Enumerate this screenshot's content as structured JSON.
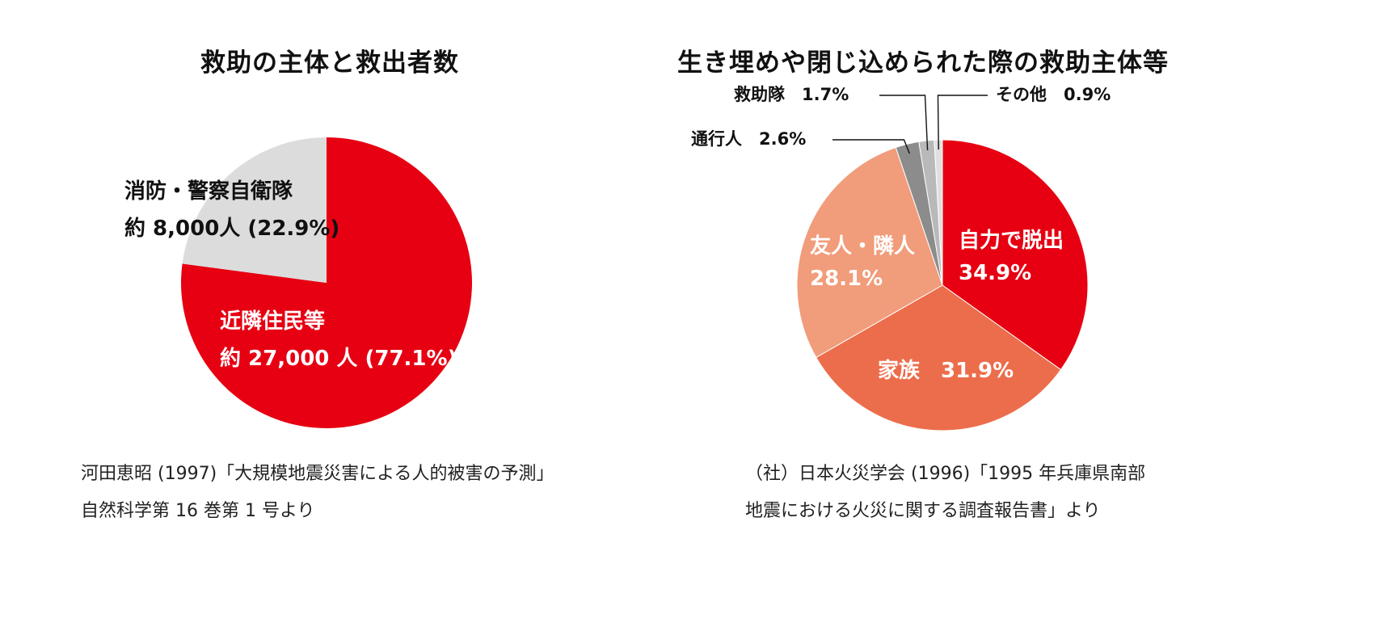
{
  "charts": [
    {
      "title": "救助の主体と救出者数",
      "source_lines": [
        "河田恵昭 (1997)「大規模地震災害による人的被害の予測」",
        "自然科学第 16 巻第 1 号より"
      ]
    },
    {
      "title": "生き埋めや閉じ込められた際の救助主体等",
      "source_lines": [
        "（社）日本火災学会 (1996)「1995 年兵庫県南部",
        "地震における火災に関する調査報告書」より"
      ]
    }
  ],
  "chart_data": [
    {
      "type": "pie",
      "title": "救助の主体と救出者数",
      "slices": [
        {
          "name": "近隣住民等",
          "count": 27000,
          "percent": 77.1,
          "label_lines": [
            "近隣住民等",
            "約 27,000 人 (77.1%)"
          ],
          "color": "#e60012"
        },
        {
          "name": "消防・警察自衛隊",
          "count": 8000,
          "percent": 22.9,
          "label_lines": [
            "消防・警察自衛隊",
            "約 8,000人 (22.9%)"
          ],
          "color": "#dcdcdc"
        }
      ]
    },
    {
      "type": "pie",
      "title": "生き埋めや閉じ込められた際の救助主体等",
      "slices": [
        {
          "name": "自力で脱出",
          "percent": 34.9,
          "label_lines": [
            "自力で脱出",
            "34.9%"
          ],
          "color": "#e60012"
        },
        {
          "name": "家族",
          "percent": 31.9,
          "label_lines": [
            "家族　31.9%"
          ],
          "color": "#ec6d4b"
        },
        {
          "name": "友人・隣人",
          "percent": 28.1,
          "label_lines": [
            "友人・隣人",
            "28.1%"
          ],
          "color": "#f19c7a"
        },
        {
          "name": "通行人",
          "percent": 2.6,
          "label_lines": [
            "通行人　2.6%"
          ],
          "color": "#8c8c8c"
        },
        {
          "name": "救助隊",
          "percent": 1.7,
          "label_lines": [
            "救助隊　1.7%"
          ],
          "color": "#b9b9b9"
        },
        {
          "name": "その他",
          "percent": 0.9,
          "label_lines": [
            "その他　0.9%"
          ],
          "color": "#e0e0e0"
        }
      ]
    }
  ]
}
